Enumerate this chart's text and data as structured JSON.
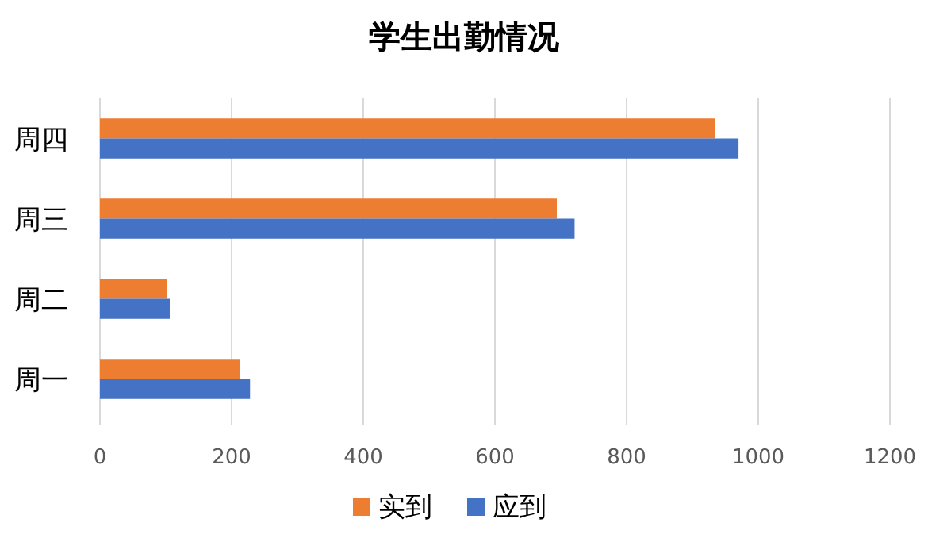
{
  "chart_data": {
    "type": "bar",
    "orientation": "horizontal",
    "title": "学生出勤情况",
    "categories": [
      "周四",
      "周三",
      "周二",
      "周一"
    ],
    "series": [
      {
        "name": "实到",
        "color": "#ed7d31",
        "values": [
          934,
          694,
          102,
          213
        ]
      },
      {
        "name": "应到",
        "color": "#4472c4",
        "values": [
          970,
          721,
          106,
          228
        ]
      }
    ],
    "xlim": [
      0,
      1200
    ],
    "xticks": [
      0,
      200,
      400,
      600,
      800,
      1000,
      1200
    ],
    "grid": "x",
    "legend": "bottom"
  }
}
